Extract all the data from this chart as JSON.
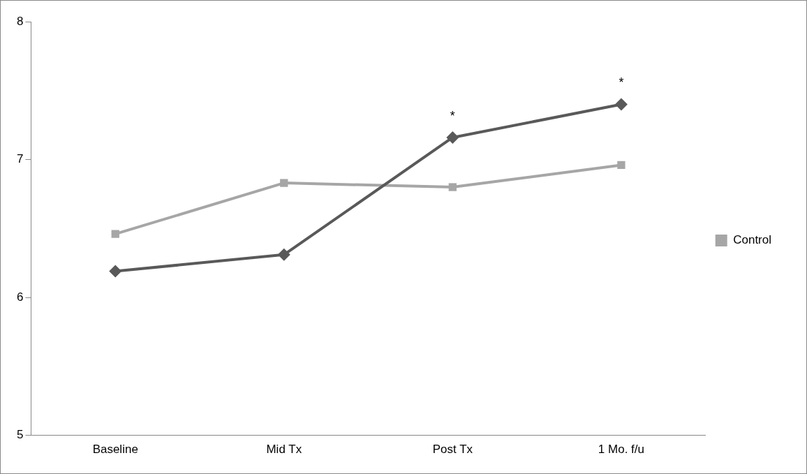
{
  "chart_data": {
    "type": "line",
    "categories": [
      "Baseline",
      "Mid Tx",
      "Post Tx",
      "1 Mo. f/u"
    ],
    "series": [
      {
        "color": "#595959",
        "marker": "diamond",
        "values": [
          6.19,
          6.31,
          7.16,
          7.4
        ]
      },
      {
        "name": "Control",
        "color": "#a6a6a6",
        "marker": "square",
        "values": [
          6.46,
          6.83,
          6.8,
          6.96
        ]
      }
    ],
    "ylim": [
      5,
      8
    ],
    "yticks": [
      5,
      6,
      7,
      8
    ],
    "grid": false,
    "legend": "right",
    "annotations": [
      {
        "text": "*",
        "x": "Post Tx",
        "y": 7.16
      },
      {
        "text": "*",
        "x": "1 Mo. f/u",
        "y": 7.4
      }
    ]
  }
}
